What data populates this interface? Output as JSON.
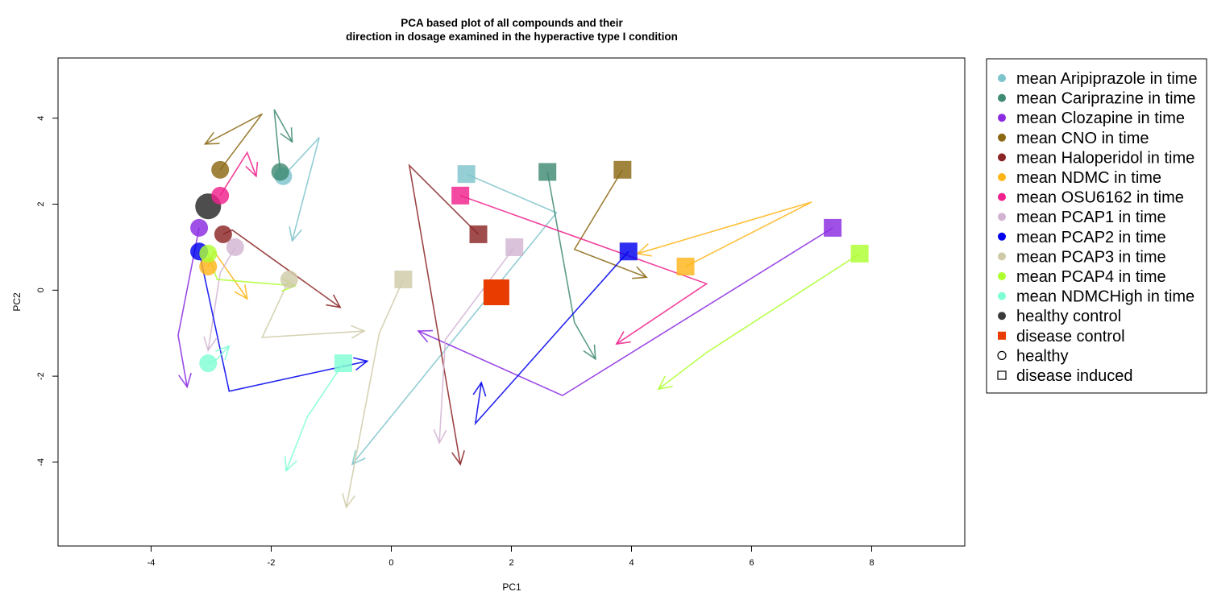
{
  "chart_data": {
    "type": "scatter",
    "title_lines": [
      "PCA based plot of all compounds and their",
      "direction in dosage examined in the hyperactive type I condition"
    ],
    "xlabel": "PC1",
    "ylabel": "PC2",
    "xlim": [
      -5.55,
      9.55
    ],
    "ylim": [
      -5.95,
      5.4
    ],
    "xticks": [
      -4,
      -2,
      0,
      2,
      4,
      6,
      8
    ],
    "yticks": [
      -4,
      -2,
      0,
      2,
      4
    ],
    "xtick_labels": [
      "-4",
      "-2",
      "0",
      "2",
      "4",
      "6",
      "8"
    ],
    "ytick_labels": [
      "-4",
      "-2",
      "0",
      "2",
      "4"
    ],
    "legend_position": "right, outside plot",
    "series": [
      {
        "name": "mean Aripiprazole in time",
        "color": "#7ec4cc",
        "healthy": [
          -1.8,
          2.65
        ],
        "disease": [
          1.25,
          2.7
        ],
        "healthy_path": [
          [
            -1.8,
            2.65
          ],
          [
            -1.2,
            3.55
          ],
          [
            -1.65,
            1.15
          ]
        ],
        "disease_path": [
          [
            1.25,
            2.7
          ],
          [
            2.75,
            1.8
          ],
          [
            -0.65,
            -4.05
          ]
        ]
      },
      {
        "name": "mean Cariprazine in time",
        "color": "#3f8a73",
        "healthy": [
          -1.85,
          2.75
        ],
        "disease": [
          2.6,
          2.75
        ],
        "healthy_path": [
          [
            -1.85,
            2.75
          ],
          [
            -1.95,
            4.2
          ],
          [
            -1.65,
            3.45
          ]
        ],
        "disease_path": [
          [
            2.6,
            2.75
          ],
          [
            3.05,
            -0.75
          ],
          [
            3.4,
            -1.6
          ]
        ]
      },
      {
        "name": "mean Clozapine in time",
        "color": "#8a2be2",
        "healthy": [
          -3.2,
          1.45
        ],
        "disease": [
          7.35,
          1.45
        ],
        "healthy_path": [
          [
            -3.2,
            1.45
          ],
          [
            -3.55,
            -1.05
          ],
          [
            -3.4,
            -2.25
          ]
        ],
        "disease_path": [
          [
            7.35,
            1.45
          ],
          [
            2.85,
            -2.45
          ],
          [
            0.45,
            -0.95
          ]
        ]
      },
      {
        "name": "mean CNO in time",
        "color": "#8b6914",
        "healthy": [
          -2.85,
          2.8
        ],
        "disease": [
          3.85,
          2.8
        ],
        "healthy_path": [
          [
            -2.85,
            2.8
          ],
          [
            -2.15,
            4.1
          ],
          [
            -3.1,
            3.4
          ]
        ],
        "disease_path": [
          [
            3.85,
            2.8
          ],
          [
            3.05,
            0.95
          ],
          [
            4.25,
            0.3
          ]
        ]
      },
      {
        "name": "mean Haloperidol in time",
        "color": "#8b2525",
        "healthy": [
          -2.8,
          1.3
        ],
        "disease": [
          1.45,
          1.3
        ],
        "healthy_path": [
          [
            -2.8,
            1.3
          ],
          [
            -2.65,
            1.4
          ],
          [
            -0.85,
            -0.4
          ]
        ],
        "disease_path": [
          [
            1.45,
            1.3
          ],
          [
            0.3,
            2.9
          ],
          [
            1.15,
            -4.05
          ]
        ]
      },
      {
        "name": "mean NDMC in time",
        "color": "#ffb51a",
        "healthy": [
          -3.05,
          0.55
        ],
        "disease": [
          4.9,
          0.55
        ],
        "healthy_path": [
          [
            -3.05,
            0.55
          ],
          [
            -2.95,
            0.9
          ],
          [
            -2.4,
            -0.2
          ]
        ],
        "disease_path": [
          [
            4.9,
            0.55
          ],
          [
            7.0,
            2.05
          ],
          [
            4.1,
            0.85
          ]
        ]
      },
      {
        "name": "mean OSU6162 in time",
        "color": "#f0218c",
        "healthy": [
          -2.85,
          2.2
        ],
        "disease": [
          1.15,
          2.2
        ],
        "healthy_path": [
          [
            -2.85,
            2.2
          ],
          [
            -2.4,
            3.2
          ],
          [
            -2.25,
            2.65
          ]
        ],
        "disease_path": [
          [
            1.15,
            2.2
          ],
          [
            5.25,
            0.15
          ],
          [
            3.75,
            -1.25
          ]
        ]
      },
      {
        "name": "mean PCAP1 in time",
        "color": "#d2b4d2",
        "healthy": [
          -2.6,
          1.0
        ],
        "disease": [
          2.05,
          1.0
        ],
        "healthy_path": [
          [
            -2.6,
            1.0
          ],
          [
            -2.85,
            0.4
          ],
          [
            -3.05,
            -1.4
          ]
        ],
        "disease_path": [
          [
            2.05,
            1.0
          ],
          [
            0.9,
            -1.15
          ],
          [
            0.8,
            -3.55
          ]
        ]
      },
      {
        "name": "mean PCAP2 in time",
        "color": "#0000ee",
        "healthy": [
          -3.2,
          0.9
        ],
        "disease": [
          3.95,
          0.9
        ],
        "healthy_path": [
          [
            -3.2,
            0.9
          ],
          [
            -2.7,
            -2.35
          ],
          [
            -0.4,
            -1.65
          ]
        ],
        "disease_path": [
          [
            3.95,
            0.9
          ],
          [
            1.4,
            -3.1
          ],
          [
            1.5,
            -2.15
          ]
        ]
      },
      {
        "name": "mean PCAP3 in time",
        "color": "#cfcba8",
        "healthy": [
          -1.7,
          0.25
        ],
        "disease": [
          0.2,
          0.25
        ],
        "healthy_path": [
          [
            -1.7,
            0.25
          ],
          [
            -2.15,
            -1.1
          ],
          [
            -0.45,
            -0.95
          ]
        ],
        "disease_path": [
          [
            0.2,
            0.25
          ],
          [
            -0.2,
            -1.0
          ],
          [
            -0.75,
            -5.05
          ]
        ]
      },
      {
        "name": "mean PCAP4 in time",
        "color": "#adff2f",
        "healthy": [
          -3.05,
          0.85
        ],
        "disease": [
          7.8,
          0.85
        ],
        "healthy_path": [
          [
            -3.05,
            0.85
          ],
          [
            -2.9,
            0.25
          ],
          [
            -1.6,
            0.1
          ]
        ],
        "disease_path": [
          [
            7.8,
            0.85
          ],
          [
            5.25,
            -1.45
          ],
          [
            4.45,
            -2.3
          ]
        ]
      },
      {
        "name": "mean NDMCHigh in time",
        "color": "#80ffd4",
        "healthy": [
          -3.05,
          -1.7
        ],
        "disease": [
          -0.8,
          -1.7
        ],
        "healthy_path": [
          [
            -3.05,
            -1.7
          ],
          [
            -2.9,
            -1.6
          ],
          [
            -2.7,
            -1.3
          ]
        ],
        "disease_path": [
          [
            -0.8,
            -1.7
          ],
          [
            -1.4,
            -2.95
          ],
          [
            -1.75,
            -4.2
          ]
        ]
      }
    ],
    "controls": [
      {
        "name": "healthy control",
        "color": "#3a3a3a",
        "x": -3.05,
        "y": 1.95,
        "shape": "circle"
      },
      {
        "name": "disease control",
        "color": "#e83c00",
        "x": 1.75,
        "y": -0.05,
        "shape": "square"
      }
    ],
    "shape_legend": [
      {
        "name": "healthy",
        "shape": "circle"
      },
      {
        "name": "disease induced",
        "shape": "square"
      }
    ]
  }
}
